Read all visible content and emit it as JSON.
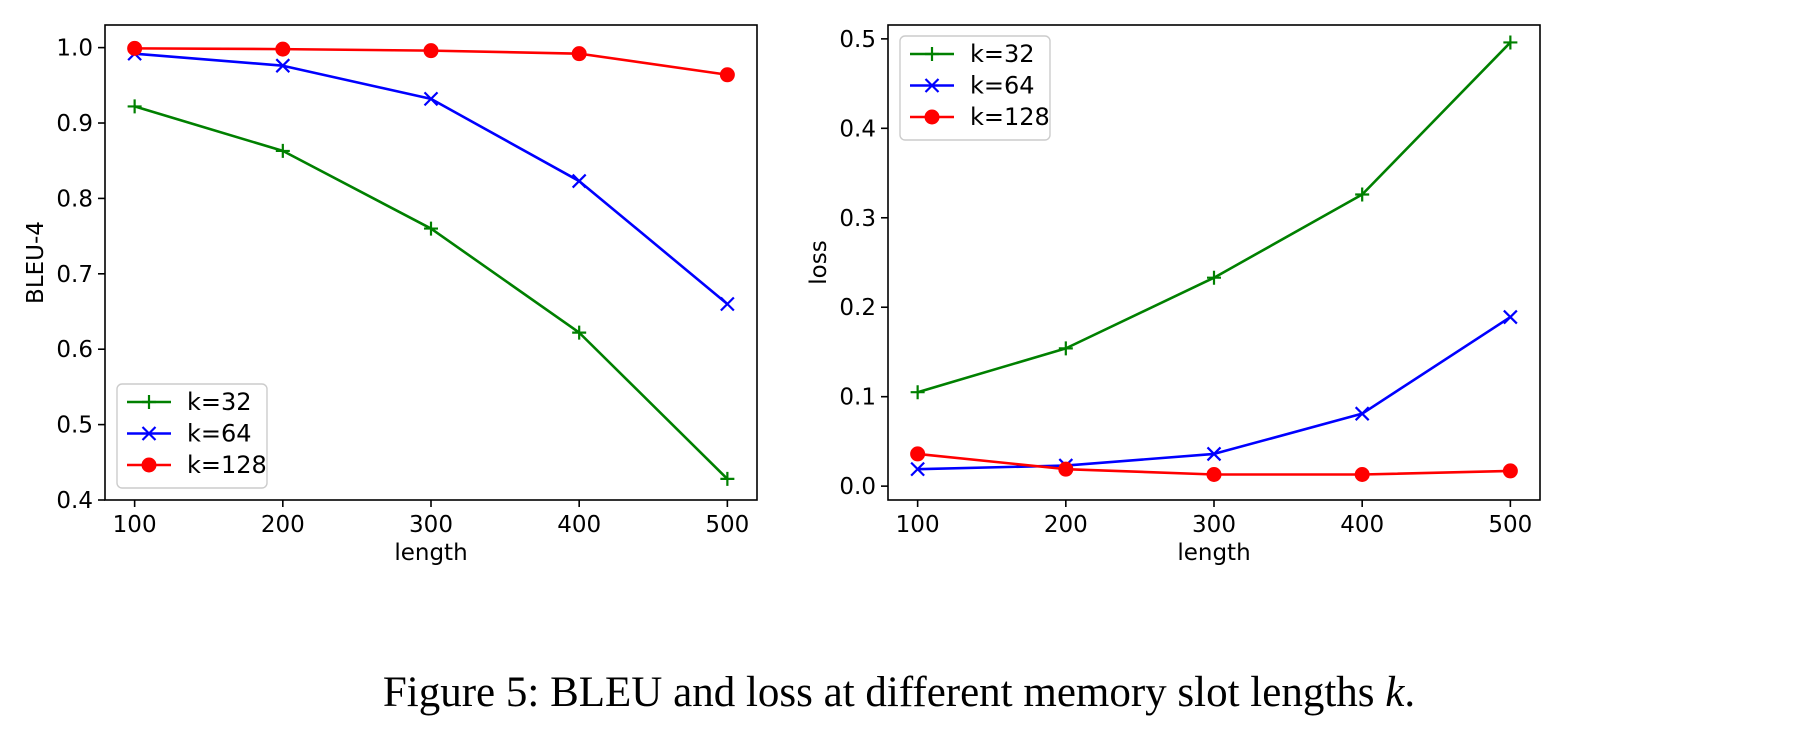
{
  "caption": {
    "prefix": "Figure 5: BLEU and loss at different memory slot lengths ",
    "variable": "k",
    "suffix": "."
  },
  "colors": {
    "k32": "#008000",
    "k64": "#0000ff",
    "k128": "#ff0000"
  },
  "chart_data": [
    {
      "type": "line",
      "title": "",
      "xlabel": "length",
      "ylabel": "BLEU-4",
      "x": [
        100,
        200,
        300,
        400,
        500
      ],
      "xticks": [
        "100",
        "200",
        "300",
        "400",
        "500"
      ],
      "yticks": [
        "0.4",
        "0.5",
        "0.6",
        "0.7",
        "0.8",
        "0.9",
        "1.0"
      ],
      "xlim": [
        80,
        520
      ],
      "ylim": [
        0.4,
        1.03
      ],
      "legend_position": "lower-left",
      "series": [
        {
          "name": "k=32",
          "color": "#008000",
          "marker": "plus",
          "values": [
            0.922,
            0.863,
            0.76,
            0.622,
            0.428
          ]
        },
        {
          "name": "k=64",
          "color": "#0000ff",
          "marker": "x",
          "values": [
            0.992,
            0.976,
            0.932,
            0.823,
            0.66
          ]
        },
        {
          "name": "k=128",
          "color": "#ff0000",
          "marker": "circle",
          "values": [
            0.999,
            0.998,
            0.996,
            0.992,
            0.964
          ]
        }
      ]
    },
    {
      "type": "line",
      "title": "",
      "xlabel": "length",
      "ylabel": "loss",
      "x": [
        100,
        200,
        300,
        400,
        500
      ],
      "xticks": [
        "100",
        "200",
        "300",
        "400",
        "500"
      ],
      "yticks": [
        "0.0",
        "0.1",
        "0.2",
        "0.3",
        "0.4",
        "0.5"
      ],
      "xlim": [
        80,
        520
      ],
      "ylim": [
        -0.0155,
        0.5155
      ],
      "legend_position": "upper-left",
      "series": [
        {
          "name": "k=32",
          "color": "#008000",
          "marker": "plus",
          "values": [
            0.105,
            0.154,
            0.233,
            0.326,
            0.496
          ]
        },
        {
          "name": "k=64",
          "color": "#0000ff",
          "marker": "x",
          "values": [
            0.019,
            0.023,
            0.036,
            0.081,
            0.189
          ]
        },
        {
          "name": "k=128",
          "color": "#ff0000",
          "marker": "circle",
          "values": [
            0.036,
            0.019,
            0.013,
            0.013,
            0.017
          ]
        }
      ]
    }
  ]
}
